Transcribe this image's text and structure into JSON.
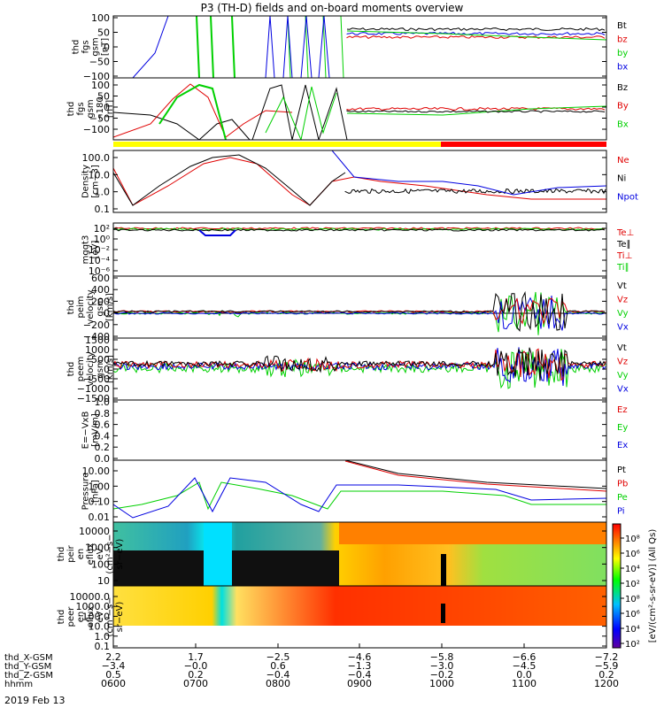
{
  "title": "P3 (TH-D) fields and on-board moments overview",
  "date_label": "2019 Feb 13",
  "colors": {
    "black": "#000000",
    "red": "#e00000",
    "green": "#00d000",
    "blue": "#0000e0",
    "yellow": "#ffff00",
    "bar_red": "#ff0000"
  },
  "chart_data": [
    {
      "type": "line",
      "id": "fgs",
      "ylabel": [
        "thd",
        "fgs",
        "gsm",
        "[nT]"
      ],
      "ylim": [
        -100,
        100
      ],
      "yticks": [
        "100",
        "50",
        "0",
        "−50",
        "−100"
      ],
      "series": [
        {
          "name": "Bt",
          "color": "black"
        },
        {
          "name": "bz",
          "color": "red"
        },
        {
          "name": "by",
          "color": "green"
        },
        {
          "name": "bx",
          "color": "blue"
        }
      ]
    },
    {
      "type": "line",
      "id": "fgs_l",
      "ylabel": [
        "thd",
        "fgs",
        "gsm",
        "~180",
        "[nT]"
      ],
      "ylim": [
        -120,
        100
      ],
      "yticks": [
        "100",
        "50",
        "0",
        "−50",
        "−100"
      ],
      "series": [
        {
          "name": "Bz",
          "color": "black"
        },
        {
          "name": "By",
          "color": "red"
        },
        {
          "name": "Bx",
          "color": "green"
        }
      ]
    },
    {
      "type": "line",
      "id": "density",
      "ylabel": [
        "Density",
        "[cm−3]"
      ],
      "scale": "log",
      "ylim": [
        0.1,
        100
      ],
      "yticks": [
        "100.0",
        "10.0",
        "1.0",
        "0.1"
      ],
      "series": [
        {
          "name": "Ne",
          "color": "red"
        },
        {
          "name": "Ni",
          "color": "black"
        },
        {
          "name": "Npot",
          "color": "blue"
        }
      ]
    },
    {
      "type": "line",
      "id": "temp",
      "ylabel": [
        "mgqt3",
        "[eV]"
      ],
      "scale": "log",
      "ylim": [
        1e-07,
        100.0
      ],
      "yticks": [
        "10²",
        "10⁰",
        "10⁻²",
        "10⁻⁴",
        "10⁻⁶"
      ],
      "series": [
        {
          "name": "Te⊥",
          "color": "red"
        },
        {
          "name": "Te∥",
          "color": "black"
        },
        {
          "name": "Ti⊥",
          "color": "red"
        },
        {
          "name": "Ti∥",
          "color": "green"
        }
      ]
    },
    {
      "type": "line",
      "id": "peim",
      "ylabel": [
        "thd",
        "peim",
        "velocity",
        "gsm",
        "[km/s]"
      ],
      "ylim": [
        -400,
        600
      ],
      "yticks": [
        "600",
        "400",
        "200",
        "0",
        "−200",
        "−400"
      ],
      "series": [
        {
          "name": "Vt",
          "color": "black"
        },
        {
          "name": "Vz",
          "color": "red"
        },
        {
          "name": "Vy",
          "color": "green"
        },
        {
          "name": "Vx",
          "color": "blue"
        }
      ]
    },
    {
      "type": "line",
      "id": "peem",
      "ylabel": [
        "thd",
        "peem",
        "velocity",
        "gsm",
        "[km/s]"
      ],
      "ylim": [
        -1500,
        1500
      ],
      "yticks": [
        "1500",
        "1000",
        "500",
        "0",
        "−500",
        "−1000",
        "−1500"
      ],
      "series": [
        {
          "name": "Vt",
          "color": "black"
        },
        {
          "name": "Vz",
          "color": "red"
        },
        {
          "name": "Vy",
          "color": "green"
        },
        {
          "name": "Vx",
          "color": "blue"
        }
      ]
    },
    {
      "type": "line",
      "id": "efield",
      "ylabel": [
        "E=−VxB",
        "[mV/m]"
      ],
      "ylim": [
        0,
        1
      ],
      "yticks": [
        "1.0",
        "0.8",
        "0.6",
        "0.4",
        "0.2",
        "0.0"
      ],
      "series": [
        {
          "name": "Ez",
          "color": "red"
        },
        {
          "name": "Ey",
          "color": "green"
        },
        {
          "name": "Ex",
          "color": "blue"
        }
      ]
    },
    {
      "type": "line",
      "id": "pressure",
      "ylabel": [
        "Pressure",
        "[nPa]"
      ],
      "scale": "log",
      "ylim": [
        0.005,
        30
      ],
      "yticks": [
        "10.00",
        "1.00",
        "0.10",
        "0.01"
      ],
      "series": [
        {
          "name": "Pt",
          "color": "black"
        },
        {
          "name": "Pb",
          "color": "red"
        },
        {
          "name": "Pe",
          "color": "green"
        },
        {
          "name": "Pi",
          "color": "blue"
        }
      ]
    },
    {
      "type": "heatmap",
      "id": "peir",
      "ylabel": [
        "thd",
        "peir",
        "en",
        "eflux",
        "eV",
        "(cm²−s−",
        "sr−eV)"
      ],
      "scale": "log",
      "ylim": [
        5,
        20000
      ],
      "yticks": [
        "10000",
        "1000",
        "100",
        "10"
      ]
    },
    {
      "type": "heatmap",
      "id": "peer",
      "ylabel": [
        "thd",
        "peer",
        "en",
        "eflux",
        "eV",
        "(cm²−s−",
        "sr−eV)"
      ],
      "scale": "log",
      "ylim": [
        0.05,
        20000
      ],
      "yticks": [
        "10000.0",
        "1000.0",
        "100.0",
        "10.0",
        "1.0",
        "0.1"
      ]
    }
  ],
  "colorbar": {
    "ticks": [
      "10⁸",
      "10⁶",
      "10⁴",
      "10²",
      "10⁸",
      "10⁶",
      "10⁴",
      "10²"
    ],
    "label": "[eV/(cm²-s-sr-eV)] (All Qs)"
  },
  "xaxis": {
    "rows": [
      {
        "label": "thd_X-GSM",
        "values": [
          "2.2",
          "1.7",
          "−2.5",
          "−4.6",
          "−5.8",
          "−6.6",
          "−7.2"
        ]
      },
      {
        "label": "thd_Y-GSM",
        "values": [
          "−3.4",
          "−0.0",
          "0.6",
          "−1.3",
          "−3.0",
          "−4.5",
          "−5.9"
        ]
      },
      {
        "label": "thd_Z-GSM",
        "values": [
          "0.5",
          "0.2",
          "−0.4",
          "−0.4",
          "−0.2",
          "0.0",
          "0.2"
        ]
      },
      {
        "label": "hhmm",
        "values": [
          "0600",
          "0700",
          "0800",
          "0900",
          "1000",
          "1100",
          "1200"
        ]
      }
    ]
  }
}
